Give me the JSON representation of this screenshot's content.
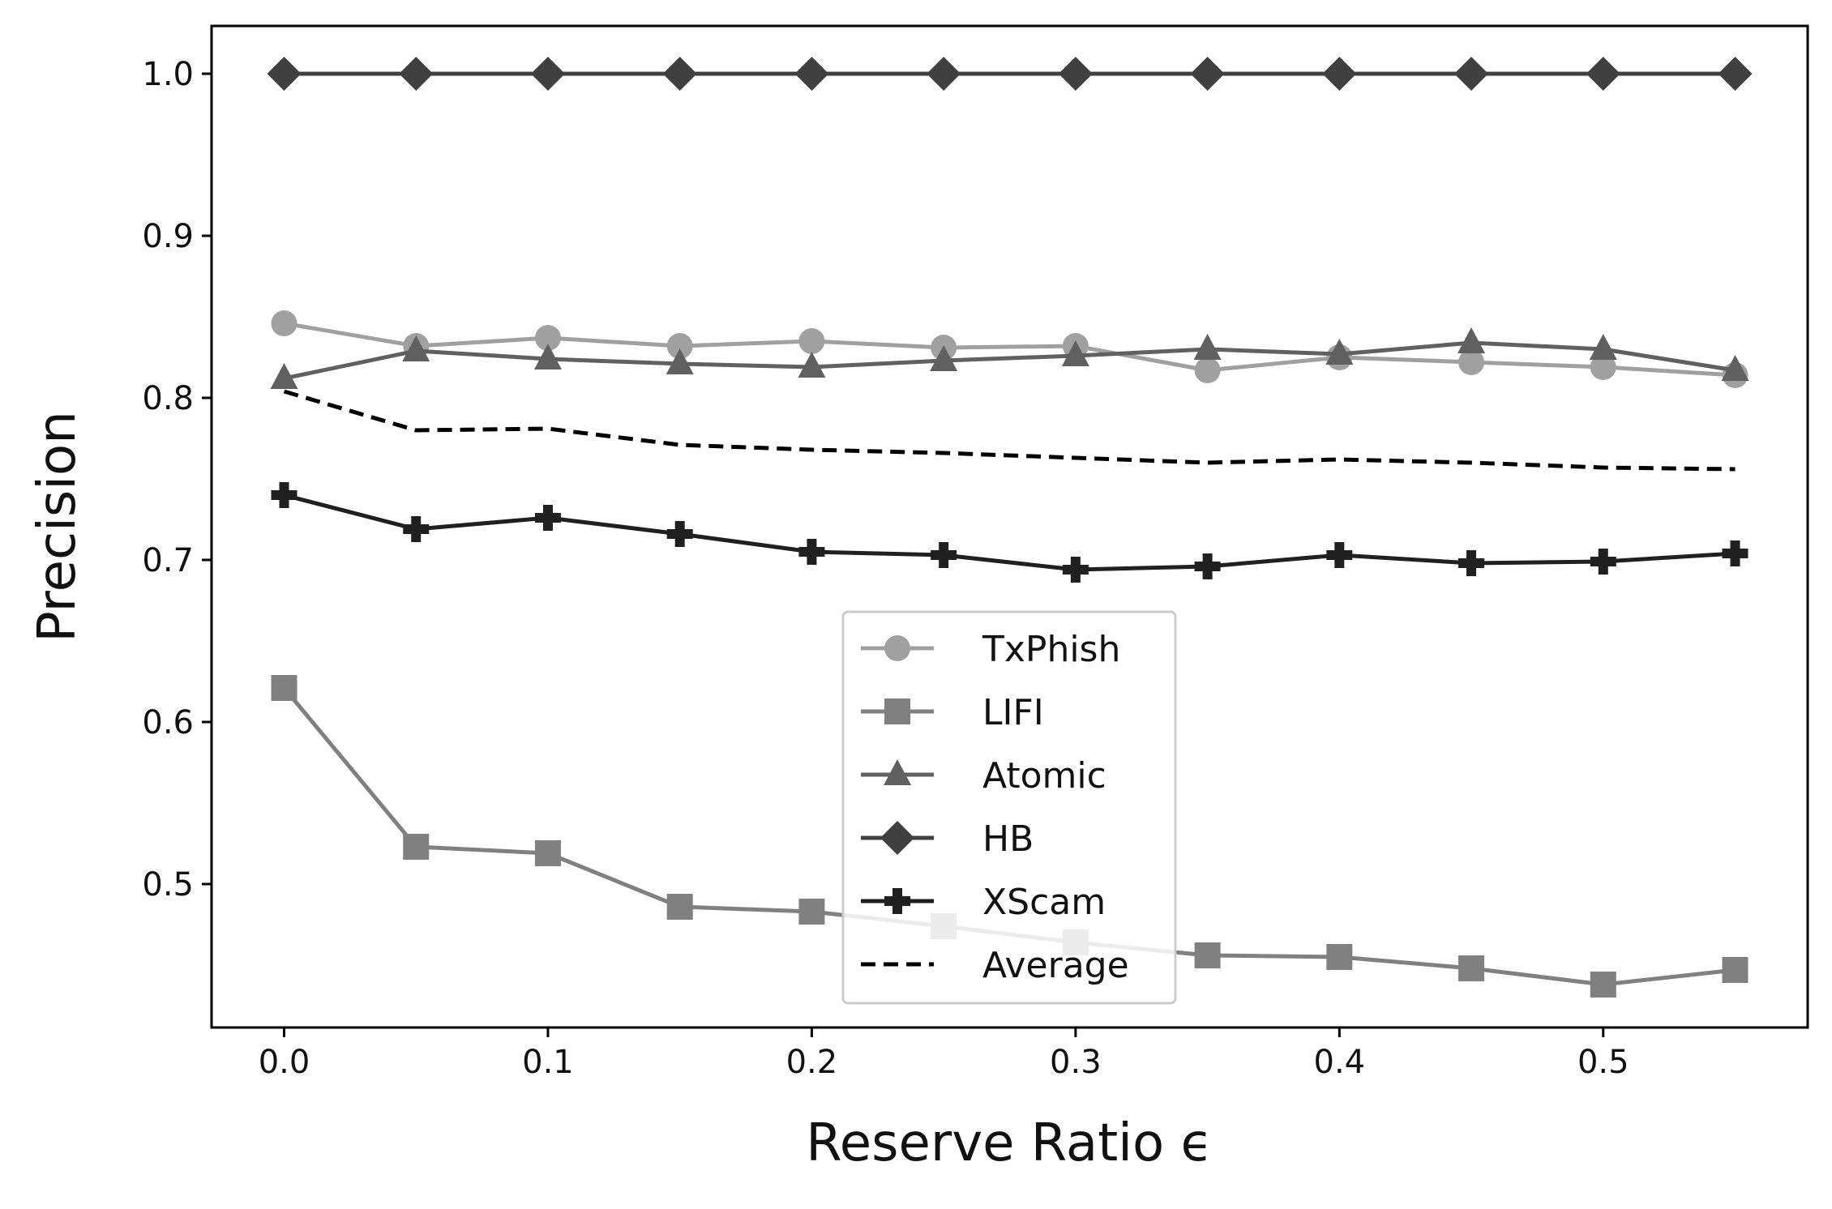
{
  "chart_data": {
    "type": "line",
    "xlabel": "Reserve Ratio ϵ",
    "ylabel": "Precision",
    "xlim": [
      -0.0275,
      0.5775
    ],
    "ylim": [
      0.4115,
      1.0295
    ],
    "xticks": [
      "0.0",
      "0.1",
      "0.2",
      "0.3",
      "0.4",
      "0.5"
    ],
    "yticks": [
      "0.5",
      "0.6",
      "0.7",
      "0.8",
      "0.9",
      "1.0"
    ],
    "grid": false,
    "legend_position": "lower-center",
    "x": [
      0.0,
      0.05,
      0.1,
      0.15,
      0.2,
      0.25,
      0.3,
      0.35,
      0.4,
      0.45,
      0.5,
      0.55
    ],
    "series": [
      {
        "name": "TxPhish",
        "color": "#a0a0a0",
        "marker": "circle",
        "dashed": false,
        "values": [
          0.846,
          0.832,
          0.837,
          0.832,
          0.835,
          0.831,
          0.832,
          0.817,
          0.825,
          0.822,
          0.819,
          0.814
        ]
      },
      {
        "name": "LIFI",
        "color": "#808080",
        "marker": "square",
        "dashed": false,
        "values": [
          0.621,
          0.523,
          0.519,
          0.486,
          0.483,
          0.474,
          0.464,
          0.456,
          0.455,
          0.448,
          0.438,
          0.447
        ]
      },
      {
        "name": "Atomic",
        "color": "#606060",
        "marker": "triangle",
        "dashed": false,
        "values": [
          0.812,
          0.829,
          0.824,
          0.821,
          0.819,
          0.823,
          0.826,
          0.83,
          0.827,
          0.834,
          0.83,
          0.817
        ]
      },
      {
        "name": "HB",
        "color": "#404040",
        "marker": "diamond",
        "dashed": false,
        "values": [
          1.0,
          1.0,
          1.0,
          1.0,
          1.0,
          1.0,
          1.0,
          1.0,
          1.0,
          1.0,
          1.0,
          1.0
        ]
      },
      {
        "name": "XScam",
        "color": "#202020",
        "marker": "plus",
        "dashed": false,
        "values": [
          0.74,
          0.719,
          0.726,
          0.716,
          0.705,
          0.703,
          0.694,
          0.696,
          0.703,
          0.698,
          0.699,
          0.704
        ]
      },
      {
        "name": "Average",
        "color": "#000000",
        "marker": "none",
        "dashed": true,
        "values": [
          0.804,
          0.78,
          0.781,
          0.771,
          0.768,
          0.766,
          0.763,
          0.76,
          0.762,
          0.76,
          0.757,
          0.756
        ]
      }
    ]
  }
}
